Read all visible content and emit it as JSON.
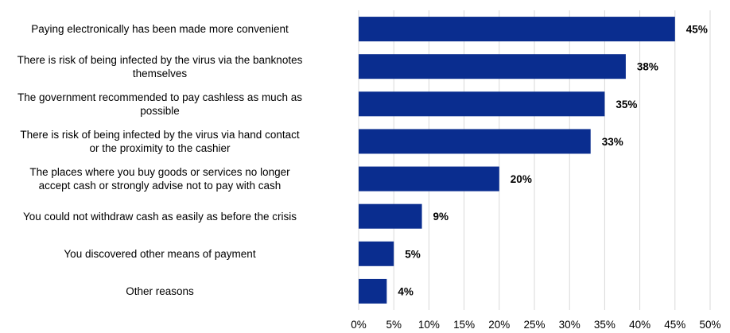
{
  "chart_data": {
    "type": "bar",
    "orientation": "horizontal",
    "title": "",
    "xlabel": "",
    "ylabel": "",
    "categories": [
      "Paying electronically has been made more convenient",
      "There is risk of being infected by the virus via the banknotes themselves",
      "The government recommended to pay cashless as much as possible",
      "There is risk of being infected by the virus via hand contact or the proximity to the cashier",
      "The places where you buy goods or services no longer accept cash or strongly advise not to pay with cash",
      "You could not withdraw cash as easily as before the crisis",
      "You discovered other means of payment",
      "Other reasons"
    ],
    "category_lines": [
      [
        "Paying electronically has been made more convenient"
      ],
      [
        "There is risk of being infected by the virus via the banknotes",
        "themselves"
      ],
      [
        "The government recommended to pay cashless as much as",
        "possible"
      ],
      [
        "There is risk of being infected by the virus via hand contact",
        "or the proximity to the cashier"
      ],
      [
        "The places where you buy goods or services no longer",
        "accept cash or strongly advise not to pay with cash"
      ],
      [
        "You could not withdraw cash as easily as before the crisis"
      ],
      [
        "You discovered other means of payment"
      ],
      [
        "Other reasons"
      ]
    ],
    "values": [
      45,
      38,
      35,
      33,
      20,
      9,
      5,
      4
    ],
    "value_labels": [
      "45%",
      "38%",
      "35%",
      "33%",
      "20%",
      "9%",
      "5%",
      "4%"
    ],
    "xlim": [
      0,
      50
    ],
    "xticks": [
      "0%",
      "5%",
      "10%",
      "15%",
      "20%",
      "25%",
      "30%",
      "35%",
      "40%",
      "45%",
      "50%"
    ],
    "grid": true,
    "legend": "none",
    "bar_color": "#0A2D8F",
    "grid_color": "#D9D9D9"
  }
}
